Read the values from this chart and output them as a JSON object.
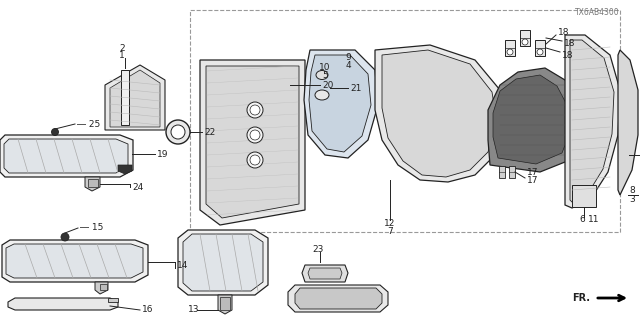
{
  "bg_color": "#ffffff",
  "line_color": "#222222",
  "watermark": "TX6AB4300",
  "fig_w": 6.4,
  "fig_h": 3.2,
  "dpi": 100
}
